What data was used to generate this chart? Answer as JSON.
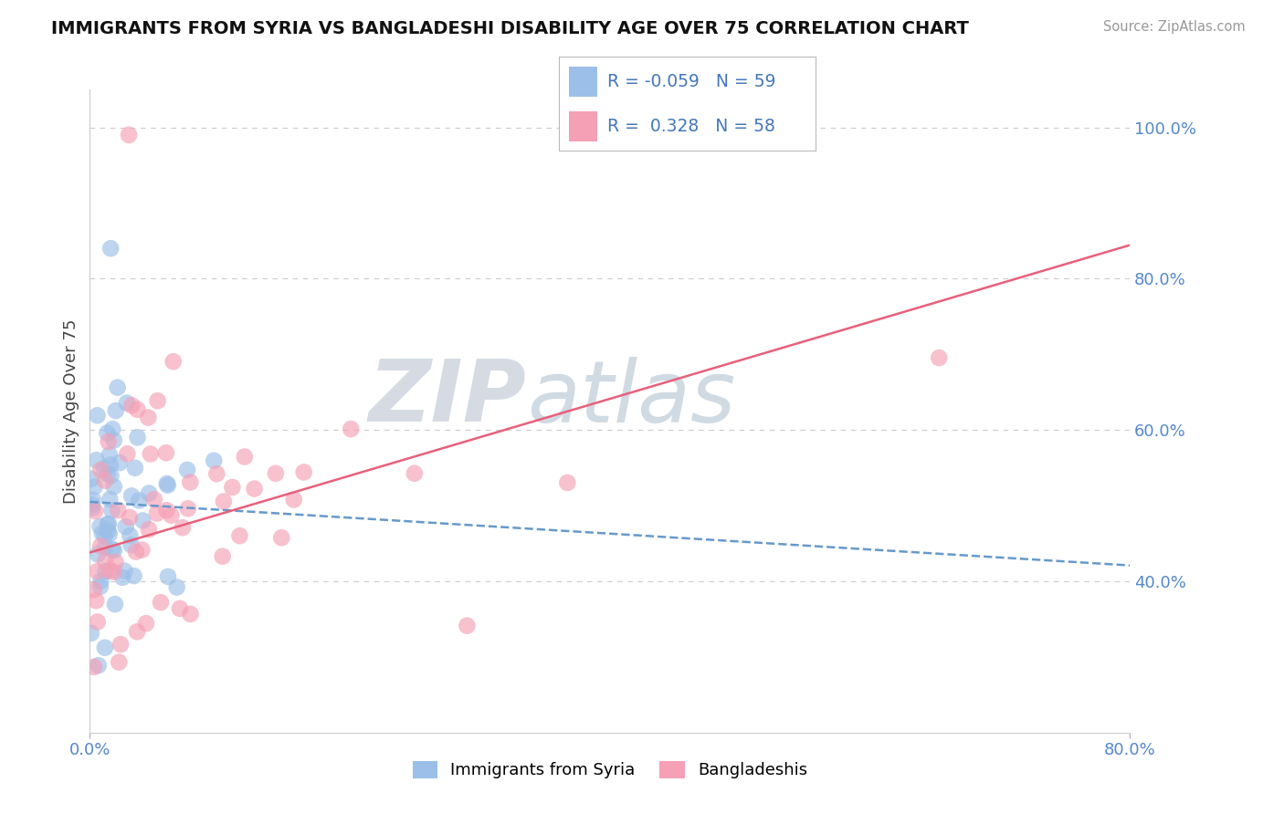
{
  "title": "IMMIGRANTS FROM SYRIA VS BANGLADESHI DISABILITY AGE OVER 75 CORRELATION CHART",
  "source": "Source: ZipAtlas.com",
  "ylabel": "Disability Age Over 75",
  "legend_labels": [
    "Immigrants from Syria",
    "Bangladeshis"
  ],
  "legend_r": [
    -0.059,
    0.328
  ],
  "legend_n": [
    59,
    58
  ],
  "blue_color": "#9BBFE8",
  "pink_color": "#F5A0B5",
  "trend_blue_color": "#6699CC",
  "trend_pink_color": "#E8607A",
  "xlim": [
    0.0,
    0.8
  ],
  "ylim_low": 0.2,
  "ylim_high": 1.05,
  "x_tick_vals": [
    0.0,
    0.8
  ],
  "x_tick_labels": [
    "0.0%",
    "80.0%"
  ],
  "y_ticks_right": [
    0.4,
    0.6,
    0.8,
    1.0
  ],
  "y_tick_labels_right": [
    "40.0%",
    "60.0%",
    "80.0%",
    "100.0%"
  ],
  "grid_color": "#CCCCCC",
  "background_color": "#FFFFFF",
  "watermark_zip": "ZIP",
  "watermark_atlas": "atlas",
  "blue_intercept": 0.505,
  "blue_slope": -0.105,
  "pink_intercept": 0.438,
  "pink_slope": 0.508,
  "figsize": [
    14.06,
    8.92
  ],
  "dpi": 100
}
